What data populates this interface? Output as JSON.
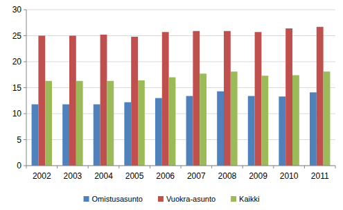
{
  "chart_data": {
    "type": "bar",
    "categories": [
      "2002",
      "2003",
      "2004",
      "2005",
      "2006",
      "2007",
      "2008",
      "2009",
      "2010",
      "2011"
    ],
    "series": [
      {
        "name": "Omistusasunto",
        "color": "#4f81bd",
        "values": [
          11.8,
          11.8,
          11.8,
          12.2,
          13.0,
          13.4,
          14.3,
          13.4,
          13.3,
          14.1
        ]
      },
      {
        "name": "Vuokra-asunto",
        "color": "#c0504d",
        "values": [
          25.0,
          25.0,
          25.2,
          24.8,
          25.7,
          25.9,
          25.9,
          25.7,
          26.4,
          26.7
        ]
      },
      {
        "name": "Kaikki",
        "color": "#9bbb59",
        "values": [
          16.3,
          16.3,
          16.3,
          16.4,
          17.0,
          17.7,
          18.1,
          17.3,
          17.4,
          18.1
        ]
      }
    ],
    "ylim": [
      0,
      30
    ],
    "yticks": [
      0,
      5,
      10,
      15,
      20,
      25,
      30
    ],
    "grid": true,
    "legend": "bottom"
  }
}
